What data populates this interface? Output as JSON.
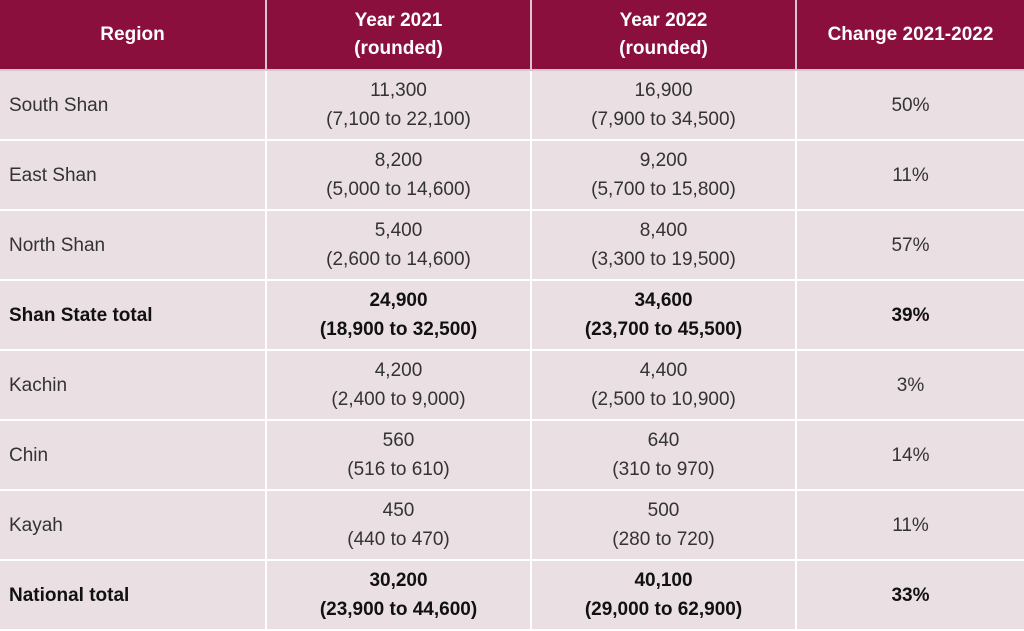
{
  "header": {
    "region": "Region",
    "year2021": [
      "Year 2021",
      "(rounded)"
    ],
    "year2022": [
      "Year 2022",
      "(rounded)"
    ],
    "change": "Change 2021-2022"
  },
  "rows": [
    {
      "region": "South Shan",
      "y2021": "11,300",
      "y2021_range": "(7,100 to 22,100)",
      "y2022": "16,900",
      "y2022_range": "(7,900 to 34,500)",
      "change": "50%"
    },
    {
      "region": "East Shan",
      "y2021": "8,200",
      "y2021_range": "(5,000 to 14,600)",
      "y2022": "9,200",
      "y2022_range": "(5,700 to 15,800)",
      "change": "11%"
    },
    {
      "region": "North Shan",
      "y2021": "5,400",
      "y2021_range": "(2,600 to 14,600)",
      "y2022": "8,400",
      "y2022_range": "(3,300 to 19,500)",
      "change": "57%"
    },
    {
      "region": "Shan State total",
      "y2021": "24,900",
      "y2021_range": "(18,900 to 32,500)",
      "y2022": "34,600",
      "y2022_range": "(23,700 to 45,500)",
      "change": "39%"
    },
    {
      "region": "Kachin",
      "y2021": "4,200",
      "y2021_range": "(2,400 to 9,000)",
      "y2022": "4,400",
      "y2022_range": "(2,500 to 10,900)",
      "change": "3%"
    },
    {
      "region": "Chin",
      "y2021": "560",
      "y2021_range": "(516 to 610)",
      "y2022": "640",
      "y2022_range": "(310 to 970)",
      "change": "14%"
    },
    {
      "region": "Kayah",
      "y2021": "450",
      "y2021_range": "(440 to 470)",
      "y2022": "500",
      "y2022_range": "(280 to 720)",
      "change": "11%"
    },
    {
      "region": "National total",
      "y2021": "30,200",
      "y2021_range": "(23,900 to 44,600)",
      "y2022": "40,100",
      "y2022_range": "(29,000 to 62,900)",
      "change": "33%"
    }
  ],
  "colors": {
    "header_bg": "#8a0f3c",
    "body_bg": "#eadfe3"
  }
}
